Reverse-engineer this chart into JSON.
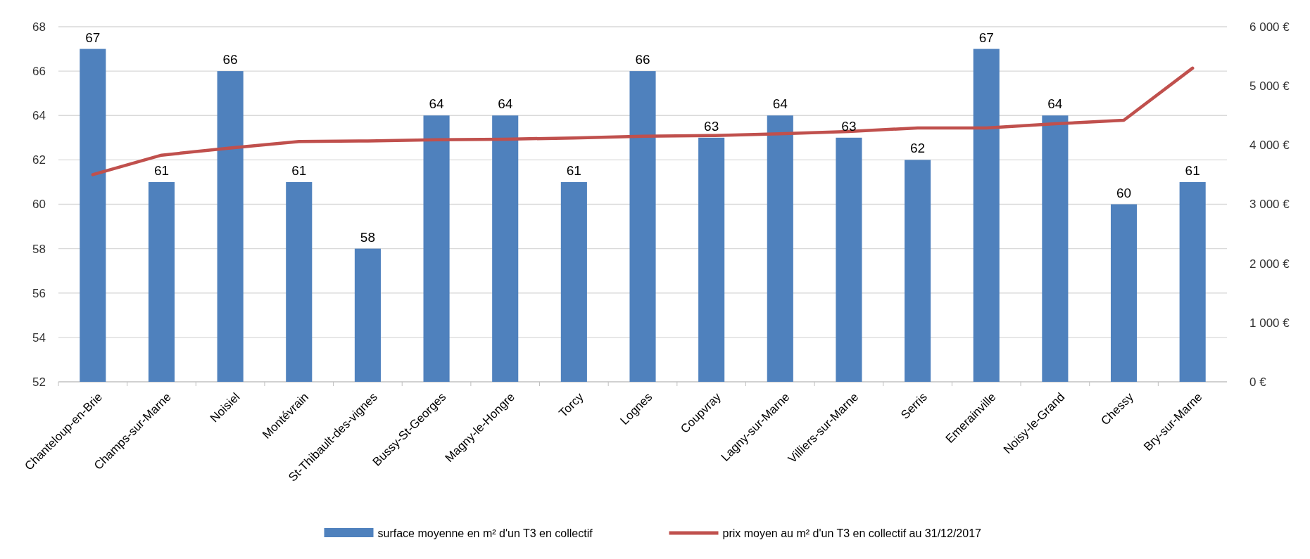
{
  "chart_data": {
    "type": "bar",
    "categories": [
      "Chanteloup-en-Brie",
      "Champs-sur-Marne",
      "Noisiel",
      "Montévrain",
      "St-Thibault-des-vignes",
      "Bussy-St-Georges",
      "Magny-le-Hongre",
      "Torcy",
      "Lognes",
      "Coupvray",
      "Lagny-sur-Marne",
      "Villiers-sur-Marne",
      "Serris",
      "Emerainville",
      "Noisy-le-Grand",
      "Chessy",
      "Bry-sur-Marne"
    ],
    "series": [
      {
        "name": "surface moyenne en m² d'un T3 en collectif",
        "color": "#4f81bd",
        "values": [
          67,
          61,
          66,
          61,
          58,
          64,
          64,
          61,
          66,
          63,
          64,
          63,
          62,
          67,
          64,
          60,
          61
        ],
        "data_labels": true
      },
      {
        "name": "prix moyen au m² d'un T3 en collectif au 31/12/2017",
        "type": "line",
        "axis": "y2",
        "color": "#c0504d",
        "values": [
          3500,
          3830,
          3950,
          4060,
          4070,
          4090,
          4100,
          4120,
          4150,
          4160,
          4190,
          4230,
          4290,
          4290,
          4360,
          4420,
          5300
        ]
      }
    ],
    "ylim": [
      52,
      68
    ],
    "yticks": [
      52,
      54,
      56,
      58,
      60,
      62,
      64,
      66,
      68
    ],
    "y2lim": [
      0,
      6000
    ],
    "y2ticks": [
      {
        "value": 0,
        "label": "0 €"
      },
      {
        "value": 1000,
        "label": "1 000 €"
      },
      {
        "value": 2000,
        "label": "2 000 €"
      },
      {
        "value": 3000,
        "label": "3 000 €"
      },
      {
        "value": 4000,
        "label": "4 000 €"
      },
      {
        "value": 5000,
        "label": "5 000 €"
      },
      {
        "value": 6000,
        "label": "6 000 €"
      }
    ],
    "grid": "y",
    "legend": "bottom",
    "marker": "none"
  }
}
